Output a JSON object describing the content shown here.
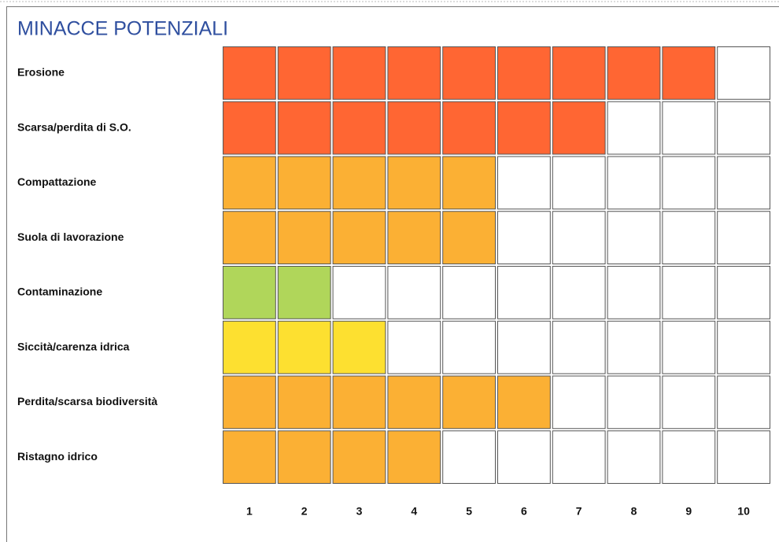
{
  "chart_data": {
    "type": "bar",
    "orientation": "horizontal",
    "title": "MINACCE POTENZIALI",
    "categories": [
      "Erosione",
      "Scarsa/perdita di S.O.",
      "Compattazione",
      "Suola di lavorazione",
      "Contaminazione",
      "Siccità/carenza idrica",
      "Perdita/scarsa biodiversità",
      "Ristagno idrico"
    ],
    "values": [
      9,
      7,
      5,
      5,
      2,
      3,
      6,
      4
    ],
    "colors": [
      "#ff6633",
      "#ff6633",
      "#fbb034",
      "#fbb034",
      "#b0d65a",
      "#fde030",
      "#fbb034",
      "#fbb034"
    ],
    "xlim": [
      0,
      10
    ],
    "xticks": [
      1,
      2,
      3,
      4,
      5,
      6,
      7,
      8,
      9,
      10
    ]
  }
}
